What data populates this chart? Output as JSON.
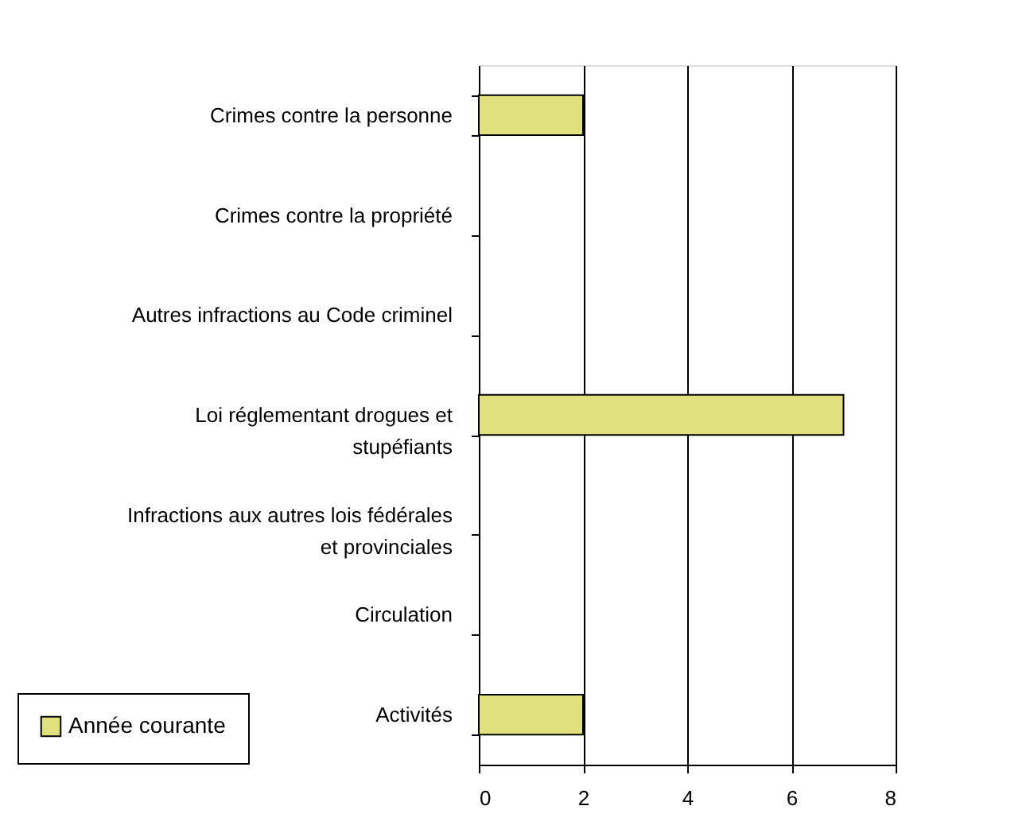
{
  "chart_data": {
    "type": "bar",
    "orientation": "horizontal",
    "categories": [
      "Crimes contre la personne",
      "Crimes contre la propriété",
      "Autres infractions au Code criminel",
      "Loi réglementant drogues et stupéfiants",
      "Infractions aux autres lois fédérales et provinciales",
      "Circulation",
      "Activités"
    ],
    "series": [
      {
        "name": "Année courante",
        "color": "#e0e07f",
        "values": [
          2,
          0,
          0,
          7,
          0,
          0,
          2
        ]
      }
    ],
    "xlim": [
      0,
      8
    ],
    "xticks": [
      0,
      2,
      4,
      6,
      8
    ],
    "grid": "x",
    "legend": "bottom left"
  }
}
